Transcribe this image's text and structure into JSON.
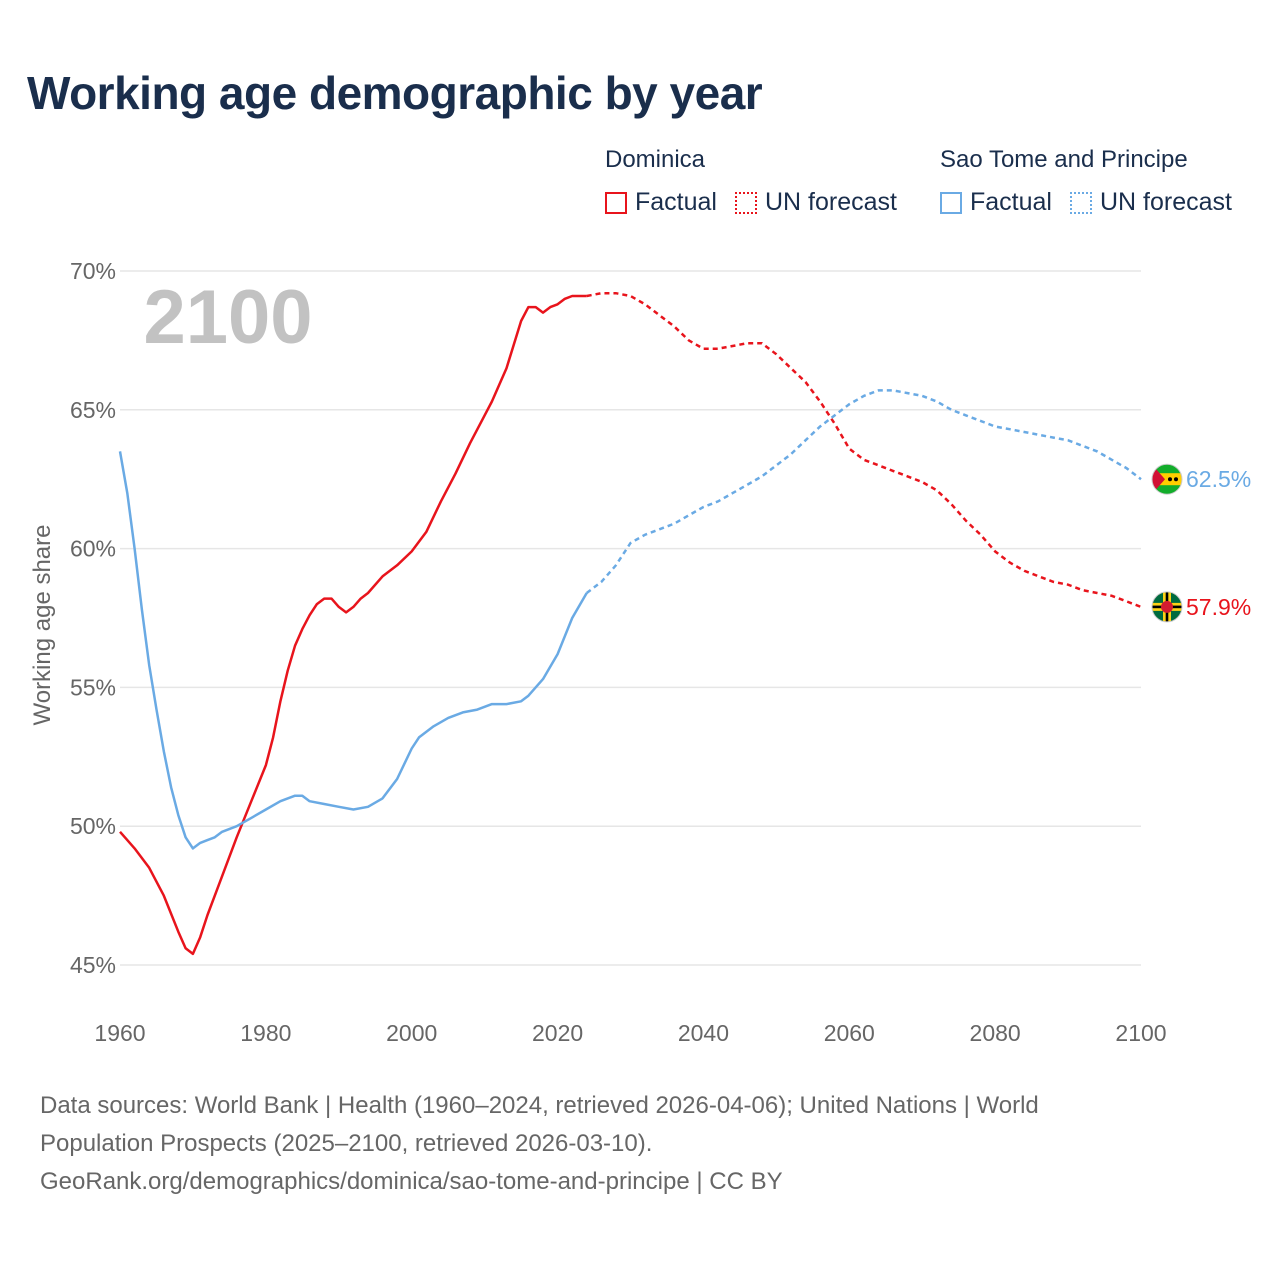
{
  "title": "Working age demographic by year",
  "legend": [
    {
      "country": "Dominica",
      "factual_label": "Factual",
      "forecast_label": "UN forecast",
      "color": "#e8141c"
    },
    {
      "country": "Sao Tome and Principe",
      "factual_label": "Factual",
      "forecast_label": "UN forecast",
      "color": "#6aaae4"
    }
  ],
  "year_watermark": "2100",
  "footer": {
    "line1": "Data sources: World Bank | Health (1960–2024, retrieved 2026-04-06); United Nations | World",
    "line2": "Population Prospects (2025–2100, retrieved 2026-03-10).",
    "line3": "GeoRank.org/demographics/dominica/sao-tome-and-principe | CC BY"
  },
  "chart_data": {
    "type": "line",
    "title": "Working age demographic by year",
    "xlabel": "",
    "ylabel": "Working age share",
    "xlim": [
      1960,
      2100
    ],
    "ylim": [
      45,
      70
    ],
    "x_ticks": [
      1960,
      1980,
      2000,
      2020,
      2040,
      2060,
      2080,
      2100
    ],
    "y_ticks": [
      45,
      50,
      55,
      60,
      65,
      70
    ],
    "y_tick_labels": [
      "45%",
      "50%",
      "55%",
      "60%",
      "65%",
      "70%"
    ],
    "x_tick_labels": [
      "1960",
      "1980",
      "2000",
      "2020",
      "2040",
      "2060",
      "2080",
      "2100"
    ],
    "forecast_start": 2024,
    "series": [
      {
        "name": "Dominica",
        "color": "#e8141c",
        "end_label": "57.9%",
        "flag_icon": "dominica-flag-icon",
        "points": [
          [
            1960,
            49.8
          ],
          [
            1962,
            49.2
          ],
          [
            1964,
            48.5
          ],
          [
            1966,
            47.5
          ],
          [
            1968,
            46.2
          ],
          [
            1969,
            45.6
          ],
          [
            1970,
            45.4
          ],
          [
            1971,
            46.0
          ],
          [
            1972,
            46.8
          ],
          [
            1974,
            48.2
          ],
          [
            1976,
            49.6
          ],
          [
            1978,
            50.9
          ],
          [
            1980,
            52.2
          ],
          [
            1981,
            53.2
          ],
          [
            1982,
            54.5
          ],
          [
            1983,
            55.6
          ],
          [
            1984,
            56.5
          ],
          [
            1985,
            57.1
          ],
          [
            1986,
            57.6
          ],
          [
            1987,
            58.0
          ],
          [
            1988,
            58.2
          ],
          [
            1989,
            58.2
          ],
          [
            1990,
            57.9
          ],
          [
            1991,
            57.7
          ],
          [
            1992,
            57.9
          ],
          [
            1993,
            58.2
          ],
          [
            1994,
            58.4
          ],
          [
            1996,
            59.0
          ],
          [
            1998,
            59.4
          ],
          [
            2000,
            59.9
          ],
          [
            2002,
            60.6
          ],
          [
            2004,
            61.7
          ],
          [
            2006,
            62.7
          ],
          [
            2008,
            63.8
          ],
          [
            2010,
            64.8
          ],
          [
            2011,
            65.3
          ],
          [
            2013,
            66.5
          ],
          [
            2015,
            68.2
          ],
          [
            2016,
            68.7
          ],
          [
            2017,
            68.7
          ],
          [
            2018,
            68.5
          ],
          [
            2019,
            68.7
          ],
          [
            2020,
            68.8
          ],
          [
            2021,
            69.0
          ],
          [
            2022,
            69.1
          ],
          [
            2024,
            69.1
          ],
          [
            2026,
            69.2
          ],
          [
            2028,
            69.2
          ],
          [
            2030,
            69.1
          ],
          [
            2032,
            68.8
          ],
          [
            2034,
            68.4
          ],
          [
            2036,
            68.0
          ],
          [
            2038,
            67.5
          ],
          [
            2040,
            67.2
          ],
          [
            2042,
            67.2
          ],
          [
            2044,
            67.3
          ],
          [
            2046,
            67.4
          ],
          [
            2048,
            67.4
          ],
          [
            2050,
            67.0
          ],
          [
            2052,
            66.5
          ],
          [
            2054,
            66.0
          ],
          [
            2056,
            65.3
          ],
          [
            2058,
            64.5
          ],
          [
            2060,
            63.6
          ],
          [
            2062,
            63.2
          ],
          [
            2064,
            63.0
          ],
          [
            2066,
            62.8
          ],
          [
            2068,
            62.6
          ],
          [
            2070,
            62.4
          ],
          [
            2072,
            62.1
          ],
          [
            2074,
            61.6
          ],
          [
            2076,
            61.0
          ],
          [
            2078,
            60.5
          ],
          [
            2080,
            59.9
          ],
          [
            2082,
            59.5
          ],
          [
            2084,
            59.2
          ],
          [
            2086,
            59.0
          ],
          [
            2088,
            58.8
          ],
          [
            2090,
            58.7
          ],
          [
            2092,
            58.5
          ],
          [
            2094,
            58.4
          ],
          [
            2096,
            58.3
          ],
          [
            2098,
            58.1
          ],
          [
            2100,
            57.9
          ]
        ]
      },
      {
        "name": "Sao Tome and Principe",
        "color": "#6aaae4",
        "end_label": "62.5%",
        "flag_icon": "sao-tome-flag-icon",
        "points": [
          [
            1960,
            63.5
          ],
          [
            1961,
            62.0
          ],
          [
            1962,
            60.0
          ],
          [
            1963,
            57.8
          ],
          [
            1964,
            55.8
          ],
          [
            1965,
            54.2
          ],
          [
            1966,
            52.7
          ],
          [
            1967,
            51.4
          ],
          [
            1968,
            50.4
          ],
          [
            1969,
            49.6
          ],
          [
            1970,
            49.2
          ],
          [
            1971,
            49.4
          ],
          [
            1972,
            49.5
          ],
          [
            1973,
            49.6
          ],
          [
            1974,
            49.8
          ],
          [
            1976,
            50.0
          ],
          [
            1978,
            50.3
          ],
          [
            1980,
            50.6
          ],
          [
            1982,
            50.9
          ],
          [
            1984,
            51.1
          ],
          [
            1985,
            51.1
          ],
          [
            1986,
            50.9
          ],
          [
            1988,
            50.8
          ],
          [
            1990,
            50.7
          ],
          [
            1992,
            50.6
          ],
          [
            1994,
            50.7
          ],
          [
            1996,
            51.0
          ],
          [
            1998,
            51.7
          ],
          [
            2000,
            52.8
          ],
          [
            2001,
            53.2
          ],
          [
            2003,
            53.6
          ],
          [
            2005,
            53.9
          ],
          [
            2007,
            54.1
          ],
          [
            2009,
            54.2
          ],
          [
            2011,
            54.4
          ],
          [
            2013,
            54.4
          ],
          [
            2015,
            54.5
          ],
          [
            2016,
            54.7
          ],
          [
            2018,
            55.3
          ],
          [
            2020,
            56.2
          ],
          [
            2022,
            57.5
          ],
          [
            2024,
            58.4
          ],
          [
            2026,
            58.8
          ],
          [
            2028,
            59.4
          ],
          [
            2030,
            60.2
          ],
          [
            2032,
            60.5
          ],
          [
            2034,
            60.7
          ],
          [
            2036,
            60.9
          ],
          [
            2038,
            61.2
          ],
          [
            2040,
            61.5
          ],
          [
            2042,
            61.7
          ],
          [
            2044,
            62.0
          ],
          [
            2046,
            62.3
          ],
          [
            2048,
            62.6
          ],
          [
            2050,
            63.0
          ],
          [
            2052,
            63.4
          ],
          [
            2054,
            63.9
          ],
          [
            2056,
            64.4
          ],
          [
            2058,
            64.8
          ],
          [
            2060,
            65.2
          ],
          [
            2062,
            65.5
          ],
          [
            2064,
            65.7
          ],
          [
            2066,
            65.7
          ],
          [
            2068,
            65.6
          ],
          [
            2070,
            65.5
          ],
          [
            2072,
            65.3
          ],
          [
            2074,
            65.0
          ],
          [
            2076,
            64.8
          ],
          [
            2078,
            64.6
          ],
          [
            2080,
            64.4
          ],
          [
            2082,
            64.3
          ],
          [
            2084,
            64.2
          ],
          [
            2086,
            64.1
          ],
          [
            2088,
            64.0
          ],
          [
            2090,
            63.9
          ],
          [
            2092,
            63.7
          ],
          [
            2094,
            63.5
          ],
          [
            2096,
            63.2
          ],
          [
            2098,
            62.9
          ],
          [
            2100,
            62.5
          ]
        ]
      }
    ]
  }
}
